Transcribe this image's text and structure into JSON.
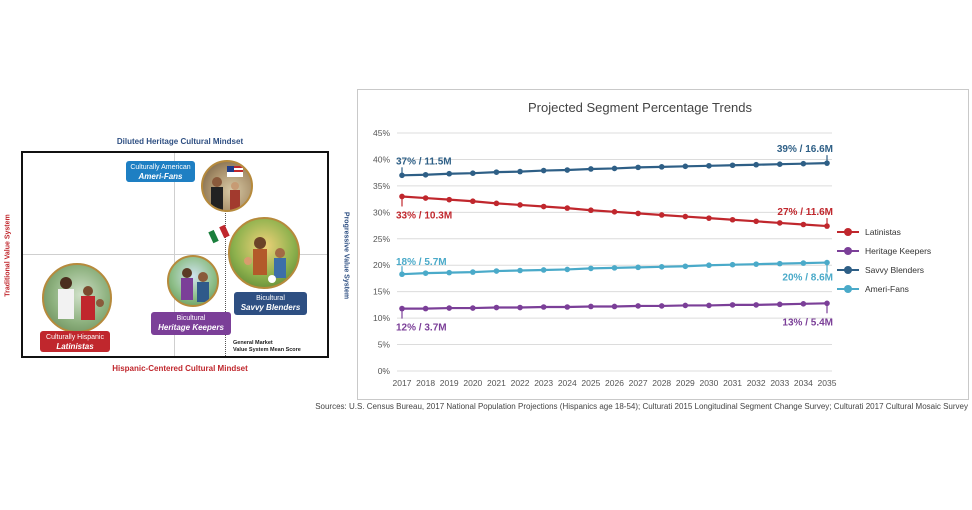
{
  "diagram": {
    "top_label": "Diluted Heritage Cultural Mindset",
    "bottom_label": "Hispanic-Centered Cultural Mindset",
    "left_label": "Traditional Value System",
    "right_label": "Progressive Value System",
    "segments": [
      {
        "sub": "Culturally American",
        "name": "Ameri-Fans",
        "color": "#1e7fc3"
      },
      {
        "sub": "Bicultural",
        "name": "Savvy Blenders",
        "color": "#2e4f82"
      },
      {
        "sub": "Bicultural",
        "name": "Heritage Keepers",
        "color": "#7b3f98"
      },
      {
        "sub": "Culturally Hispanic",
        "name": "Latinistas",
        "color": "#c0272d"
      }
    ],
    "note_line1": "General Market",
    "note_line2": "Value System Mean Score"
  },
  "chart_data": {
    "type": "line",
    "title": "Projected Segment Percentage Trends",
    "x": [
      2017,
      2018,
      2019,
      2020,
      2021,
      2022,
      2023,
      2024,
      2025,
      2026,
      2027,
      2028,
      2029,
      2030,
      2031,
      2032,
      2033,
      2034,
      2035
    ],
    "ylim": [
      0,
      45
    ],
    "yticks": [
      "0%",
      "5%",
      "10%",
      "15%",
      "20%",
      "25%",
      "30%",
      "35%",
      "40%",
      "45%"
    ],
    "grid": true,
    "legend_position": "right",
    "series": [
      {
        "name": "Latinistas",
        "color": "#c0272d",
        "values": [
          33,
          32.7,
          32.4,
          32.1,
          31.7,
          31.4,
          31.1,
          30.8,
          30.4,
          30.1,
          29.8,
          29.5,
          29.2,
          28.9,
          28.6,
          28.3,
          28.0,
          27.7,
          27.4
        ],
        "start_label": "33% / 10.3M",
        "end_label": "27% / 11.6M"
      },
      {
        "name": "Heritage Keepers",
        "color": "#7b3f98",
        "values": [
          11.8,
          11.8,
          11.9,
          11.9,
          12.0,
          12.0,
          12.1,
          12.1,
          12.2,
          12.2,
          12.3,
          12.3,
          12.4,
          12.4,
          12.5,
          12.5,
          12.6,
          12.7,
          12.8
        ],
        "start_label": "12% / 3.7M",
        "end_label": "13% / 5.4M"
      },
      {
        "name": "Savvy Blenders",
        "color": "#2e5f86",
        "values": [
          37.0,
          37.1,
          37.3,
          37.4,
          37.6,
          37.7,
          37.9,
          38.0,
          38.2,
          38.3,
          38.5,
          38.6,
          38.7,
          38.8,
          38.9,
          39.0,
          39.1,
          39.2,
          39.3
        ],
        "start_label": "37% / 11.5M",
        "end_label": "39% / 16.6M"
      },
      {
        "name": "Ameri-Fans",
        "color": "#4aaac9",
        "values": [
          18.3,
          18.5,
          18.6,
          18.7,
          18.9,
          19.0,
          19.1,
          19.2,
          19.4,
          19.5,
          19.6,
          19.7,
          19.8,
          20.0,
          20.1,
          20.2,
          20.3,
          20.4,
          20.5
        ],
        "start_label": "18% / 5.7M",
        "end_label": "20% / 8.6M"
      }
    ]
  },
  "sources": "Sources: U.S. Census Bureau, 2017 National Population Projections (Hispanics age 18-54); Culturati 2015 Longitudinal Segment Change Survey; Culturati 2017 Cultural Mosaic Survey"
}
